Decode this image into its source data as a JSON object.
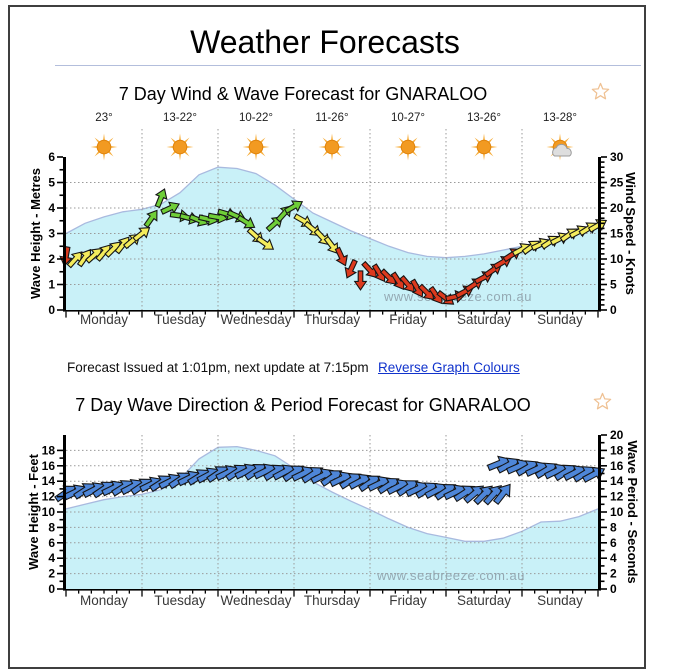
{
  "page_title": "Weather Forecasts",
  "issued": {
    "text": "Forecast Issued at 1:01pm, next update at 7:15pm",
    "link_label": "Reverse Graph Colours"
  },
  "watermark": "www.seabreeze.com.au",
  "palette": {
    "arrow_yellow": "#F4EC5C",
    "arrow_green": "#6FCE38",
    "arrow_red": "#DC3A1E",
    "arrow_blue": "#4E86D8",
    "area_fill": "#C9F1F8",
    "area_edge": "#A9BADF",
    "grid": "#9A9A9A",
    "axis": "#000000",
    "day_label": "#383838",
    "watermark_color": "#8FA2AC",
    "link": "#1133CC",
    "star_outline": "#EFC193",
    "divider": "#B3BEDC",
    "sun_core": "#F29A21",
    "sun_ray": "#F7AE3B",
    "cloud_fill": "#DEDEDE",
    "cloud_edge": "#9B9B9B"
  },
  "chart_data": [
    {
      "type": "area+arrows",
      "title": "7 Day Wind & Wave Forecast for GNARALOO",
      "days": [
        "Monday",
        "Tuesday",
        "Wednesday",
        "Thursday",
        "Friday",
        "Saturday",
        "Sunday"
      ],
      "temperatures": [
        "23°",
        "13-22°",
        "10-22°",
        "11-26°",
        "10-27°",
        "13-26°",
        "13-28°"
      ],
      "weather_icons": [
        "sunny",
        "sunny",
        "sunny",
        "sunny",
        "sunny",
        "sunny",
        "partly-cloudy"
      ],
      "left_axis": {
        "label": "Wave Height - Metres",
        "min": 0,
        "max": 6,
        "tick_step": 1
      },
      "right_axis": {
        "label": "Wind Speed - Knots",
        "min": 0,
        "max": 30,
        "tick_step": 5
      },
      "legend": "off",
      "grid": "dotted",
      "area_series": {
        "name": "Wave Height (metres)",
        "axis": "left",
        "start_day": 0,
        "step_days": 0.25,
        "values": [
          3.0,
          3.4,
          3.65,
          3.85,
          3.95,
          4.15,
          4.6,
          5.3,
          5.6,
          5.55,
          5.35,
          4.9,
          4.35,
          3.8,
          3.45,
          3.1,
          2.8,
          2.5,
          2.25,
          2.1,
          2.05,
          2.1,
          2.2,
          2.35,
          2.5,
          2.7,
          2.9,
          3.1,
          3.3
        ]
      },
      "arrow_series": [
        {
          "name": "Wind speed and direction",
          "axis": "right",
          "start_day": 0,
          "step_days": 0.125,
          "values": [
            10.5,
            10.0,
            10.3,
            10.8,
            11.3,
            12.0,
            12.8,
            13.6,
            15.0,
            18.0,
            22.0,
            20.0,
            18.5,
            18.0,
            17.6,
            17.8,
            18.2,
            18.8,
            18.4,
            17.2,
            14.5,
            13.0,
            17.0,
            19.0,
            20.3,
            17.5,
            15.8,
            14.2,
            12.6,
            10.4,
            8.0,
            5.8,
            7.8,
            7.2,
            6.4,
            5.6,
            5.0,
            4.2,
            3.4,
            2.8,
            2.3,
            2.6,
            3.6,
            5.0,
            6.4,
            7.9,
            9.4,
            10.9,
            11.9,
            12.4,
            12.9,
            13.4,
            14.0,
            14.8,
            15.4,
            16.0,
            16.6
          ],
          "colors": [
            "red",
            "yellow",
            "yellow",
            "yellow",
            "yellow",
            "yellow",
            "yellow",
            "yellow",
            "yellow",
            "green",
            "green",
            "green",
            "green",
            "green",
            "green",
            "green",
            "green",
            "green",
            "green",
            "green",
            "yellow",
            "yellow",
            "green",
            "green",
            "green",
            "yellow",
            "yellow",
            "yellow",
            "yellow",
            "red",
            "red",
            "red",
            "red",
            "red",
            "red",
            "red",
            "red",
            "red",
            "red",
            "red",
            "red",
            "red",
            "red",
            "red",
            "red",
            "red",
            "red",
            "red",
            "yellow",
            "yellow",
            "yellow",
            "yellow",
            "yellow",
            "yellow",
            "yellow",
            "yellow",
            "yellow"
          ],
          "angles_deg": [
            100,
            -48,
            -55,
            -42,
            -50,
            -45,
            -52,
            -40,
            -38,
            -55,
            -68,
            -25,
            8,
            15,
            22,
            12,
            10,
            16,
            24,
            32,
            42,
            35,
            -42,
            -48,
            -30,
            30,
            40,
            47,
            53,
            65,
            115,
            90,
            48,
            58,
            45,
            57,
            50,
            60,
            45,
            55,
            38,
            -12,
            -28,
            -33,
            -28,
            -35,
            -30,
            -33,
            -28,
            -36,
            -25,
            -33,
            -27,
            -35,
            -28,
            -32,
            -30
          ]
        }
      ]
    },
    {
      "type": "area+arrows",
      "title": "7 Day Wave Direction & Period Forecast for GNARALOO",
      "days": [
        "Monday",
        "Tuesday",
        "Wednesday",
        "Thursday",
        "Friday",
        "Saturday",
        "Sunday"
      ],
      "left_axis": {
        "label": "Wave Height - Feet",
        "min": 0,
        "max": 18,
        "tick_step": 2
      },
      "right_axis": {
        "label": "Wave Period - Seconds",
        "min": 0,
        "max": 20,
        "tick_step": 2
      },
      "legend": "off",
      "grid": "dotted",
      "area_series": {
        "name": "Wave Height (feet)",
        "axis": "left",
        "start_day": 0,
        "step_days": 0.25,
        "values": [
          10.4,
          11.0,
          11.6,
          12.0,
          12.3,
          12.9,
          14.3,
          16.9,
          18.4,
          18.5,
          18.0,
          17.3,
          15.7,
          13.9,
          12.6,
          11.4,
          10.3,
          9.1,
          8.0,
          7.2,
          6.7,
          6.2,
          6.2,
          6.6,
          7.5,
          8.7,
          8.8,
          9.4,
          10.4
        ]
      },
      "arrow_series": [
        {
          "name": "Primary swell period and direction",
          "axis": "right",
          "start_day": 0,
          "step_days": 0.125,
          "values": [
            12.5,
            12.6,
            12.8,
            12.9,
            13.0,
            13.1,
            13.2,
            13.3,
            13.4,
            13.6,
            13.8,
            14.0,
            14.2,
            14.4,
            14.6,
            14.8,
            15.0,
            15.1,
            15.2,
            15.3,
            15.3,
            15.3,
            15.2,
            15.2,
            15.1,
            15.0,
            14.9,
            14.7,
            14.5,
            14.3,
            14.1,
            14.0,
            13.8,
            13.7,
            13.5,
            13.3,
            13.2,
            13.0,
            12.9,
            12.8,
            12.7,
            12.6,
            12.5,
            12.4,
            12.3,
            12.3,
            12.4
          ],
          "color": "blue",
          "angles_deg": [
            -34,
            -26,
            -33,
            -27,
            -34,
            -26,
            -32,
            -28,
            -34,
            -26,
            -33,
            -27,
            -34,
            -26,
            -32,
            -28,
            -34,
            -26,
            -33,
            -27,
            -34,
            -26,
            -32,
            -28,
            -34,
            -26,
            -33,
            -27,
            -34,
            -26,
            -32,
            -28,
            -34,
            -26,
            -33,
            -27,
            -34,
            -26,
            -32,
            -28,
            -34,
            -26,
            -33,
            -40,
            -45,
            -48,
            -52
          ]
        },
        {
          "name": "New swell period and direction",
          "axis": "right",
          "start_day": 5.7,
          "step_days": 0.125,
          "values": [
            16.3,
            16.1,
            15.9,
            15.75,
            15.6,
            15.45,
            15.3,
            15.2,
            15.1,
            15.0,
            14.9
          ],
          "color": "blue",
          "angles_deg": [
            -22,
            -28,
            -24,
            -30,
            -25,
            -31,
            -26,
            -32,
            -27,
            -31,
            -28
          ]
        }
      ]
    }
  ]
}
